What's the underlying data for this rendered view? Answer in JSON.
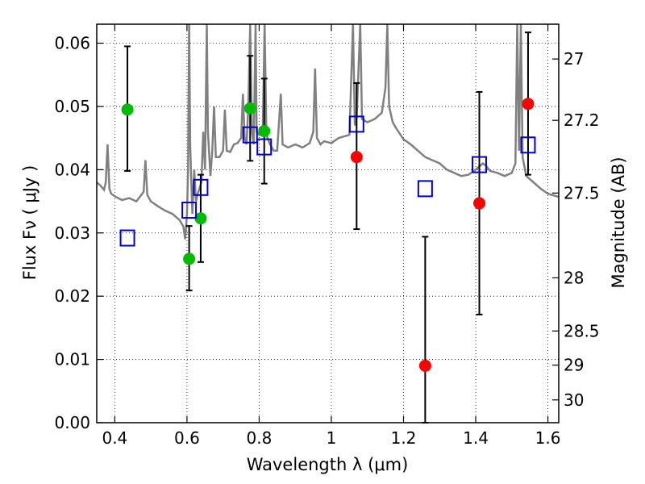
{
  "chart_data": {
    "type": "scatter",
    "xlabel": "Wavelength  λ (μm)",
    "ylabel": "Flux  Fν  ( μJy )",
    "y2label": "Magnitude (AB)",
    "xlim": [
      0.35,
      1.63
    ],
    "ylim": [
      0.0,
      0.063
    ],
    "x_ticks": [
      0.4,
      0.6,
      0.8,
      1.0,
      1.2,
      1.4,
      1.6
    ],
    "x_tick_labels": [
      "0.4",
      "0.6",
      "0.8",
      "1",
      "1.2",
      "1.4",
      "1.6"
    ],
    "y_ticks": [
      0.0,
      0.01,
      0.02,
      0.03,
      0.04,
      0.05,
      0.06
    ],
    "y_tick_labels": [
      "0.00",
      "0.01",
      "0.02",
      "0.03",
      "0.04",
      "0.05",
      "0.06"
    ],
    "y2_ticks": [
      {
        "label": "27",
        "flux": 0.0575
      },
      {
        "label": "27.2",
        "flux": 0.0478
      },
      {
        "label": "27.5",
        "flux": 0.0363
      },
      {
        "label": "28",
        "flux": 0.0229
      },
      {
        "label": "28.5",
        "flux": 0.0145
      },
      {
        "label": "29",
        "flux": 0.0091
      },
      {
        "label": "30",
        "flux": 0.0036
      }
    ],
    "grid": true,
    "colors": {
      "green": "#00bb00",
      "red": "#ff0000",
      "blue": "#0000cc",
      "spectrum": "#808080",
      "errorbar": "#000000"
    },
    "series": [
      {
        "marker": "circle",
        "color": "#00bb00",
        "points": [
          {
            "x": 0.435,
            "y": 0.0495,
            "yerr_low": 0.0398,
            "yerr_high": 0.0595
          },
          {
            "x": 0.606,
            "y": 0.0259,
            "yerr_low": 0.0209,
            "yerr_high": 0.0311
          },
          {
            "x": 0.638,
            "y": 0.0323,
            "yerr_low": 0.0254,
            "yerr_high": 0.0392
          },
          {
            "x": 0.775,
            "y": 0.0497,
            "yerr_low": 0.0414,
            "yerr_high": 0.058
          },
          {
            "x": 0.814,
            "y": 0.0461,
            "yerr_low": 0.0378,
            "yerr_high": 0.0544
          }
        ]
      },
      {
        "marker": "circle",
        "color": "#ff0000",
        "points": [
          {
            "x": 1.07,
            "y": 0.042,
            "yerr_low": 0.0306,
            "yerr_high": 0.0537
          },
          {
            "x": 1.26,
            "y": 0.009,
            "yerr_low": 0.0,
            "yerr_high": 0.0294
          },
          {
            "x": 1.41,
            "y": 0.0347,
            "yerr_low": 0.0171,
            "yerr_high": 0.0523
          },
          {
            "x": 1.545,
            "y": 0.0504,
            "yerr_low": 0.0392,
            "yerr_high": 0.0617
          }
        ]
      },
      {
        "marker": "square",
        "color": "#0000cc",
        "points": [
          {
            "x": 0.435,
            "y": 0.0292
          },
          {
            "x": 0.606,
            "y": 0.0336
          },
          {
            "x": 0.638,
            "y": 0.0372
          },
          {
            "x": 0.775,
            "y": 0.0455
          },
          {
            "x": 0.814,
            "y": 0.0436
          },
          {
            "x": 1.07,
            "y": 0.0472
          },
          {
            "x": 1.26,
            "y": 0.037
          },
          {
            "x": 1.41,
            "y": 0.0408
          },
          {
            "x": 1.545,
            "y": 0.0439
          }
        ]
      }
    ],
    "spectrum": {
      "color": "#808080",
      "points": [
        [
          0.35,
          0.038
        ],
        [
          0.36,
          0.0375
        ],
        [
          0.37,
          0.0368
        ],
        [
          0.375,
          0.038
        ],
        [
          0.38,
          0.044
        ],
        [
          0.385,
          0.037
        ],
        [
          0.39,
          0.0362
        ],
        [
          0.4,
          0.0358
        ],
        [
          0.42,
          0.0352
        ],
        [
          0.44,
          0.0355
        ],
        [
          0.46,
          0.035
        ],
        [
          0.48,
          0.0365
        ],
        [
          0.485,
          0.0415
        ],
        [
          0.49,
          0.036
        ],
        [
          0.5,
          0.035
        ],
        [
          0.52,
          0.0342
        ],
        [
          0.54,
          0.0335
        ],
        [
          0.56,
          0.033
        ],
        [
          0.58,
          0.032
        ],
        [
          0.59,
          0.031
        ],
        [
          0.595,
          0.029
        ],
        [
          0.6,
          0.033
        ],
        [
          0.603,
          0.04
        ],
        [
          0.606,
          0.063
        ],
        [
          0.609,
          0.044
        ],
        [
          0.612,
          0.038
        ],
        [
          0.615,
          0.033
        ],
        [
          0.62,
          0.04
        ],
        [
          0.625,
          0.035
        ],
        [
          0.63,
          0.0362
        ],
        [
          0.64,
          0.038
        ],
        [
          0.645,
          0.046
        ],
        [
          0.65,
          0.04
        ],
        [
          0.655,
          0.063
        ],
        [
          0.658,
          0.046
        ],
        [
          0.665,
          0.039
        ],
        [
          0.67,
          0.043
        ],
        [
          0.675,
          0.05
        ],
        [
          0.68,
          0.042
        ],
        [
          0.69,
          0.042
        ],
        [
          0.7,
          0.043
        ],
        [
          0.705,
          0.0495
        ],
        [
          0.71,
          0.043
        ],
        [
          0.72,
          0.0428
        ],
        [
          0.73,
          0.044
        ],
        [
          0.74,
          0.0442
        ],
        [
          0.75,
          0.045
        ],
        [
          0.755,
          0.052
        ],
        [
          0.76,
          0.045
        ],
        [
          0.765,
          0.044
        ],
        [
          0.77,
          0.05
        ],
        [
          0.775,
          0.063
        ],
        [
          0.78,
          0.046
        ],
        [
          0.785,
          0.044
        ],
        [
          0.79,
          0.063
        ],
        [
          0.793,
          0.046
        ],
        [
          0.8,
          0.0455
        ],
        [
          0.81,
          0.046
        ],
        [
          0.815,
          0.063
        ],
        [
          0.82,
          0.0455
        ],
        [
          0.83,
          0.044
        ],
        [
          0.84,
          0.043
        ],
        [
          0.85,
          0.043
        ],
        [
          0.86,
          0.052
        ],
        [
          0.865,
          0.044
        ],
        [
          0.88,
          0.0435
        ],
        [
          0.9,
          0.044
        ],
        [
          0.92,
          0.0435
        ],
        [
          0.94,
          0.0442
        ],
        [
          0.95,
          0.046
        ],
        [
          0.955,
          0.056
        ],
        [
          0.96,
          0.045
        ],
        [
          0.97,
          0.044
        ],
        [
          0.98,
          0.0445
        ],
        [
          1.0,
          0.0442
        ],
        [
          1.02,
          0.045
        ],
        [
          1.05,
          0.0455
        ],
        [
          1.06,
          0.063
        ],
        [
          1.065,
          0.047
        ],
        [
          1.07,
          0.048
        ],
        [
          1.08,
          0.063
        ],
        [
          1.085,
          0.048
        ],
        [
          1.1,
          0.0475
        ],
        [
          1.12,
          0.048
        ],
        [
          1.14,
          0.049
        ],
        [
          1.15,
          0.053
        ],
        [
          1.155,
          0.063
        ],
        [
          1.16,
          0.05
        ],
        [
          1.17,
          0.0475
        ],
        [
          1.18,
          0.0465
        ],
        [
          1.2,
          0.0448
        ],
        [
          1.22,
          0.044
        ],
        [
          1.24,
          0.043
        ],
        [
          1.26,
          0.042
        ],
        [
          1.28,
          0.0415
        ],
        [
          1.3,
          0.041
        ],
        [
          1.32,
          0.04
        ],
        [
          1.34,
          0.0395
        ],
        [
          1.36,
          0.039
        ],
        [
          1.38,
          0.0392
        ],
        [
          1.4,
          0.04
        ],
        [
          1.42,
          0.041
        ],
        [
          1.43,
          0.0405
        ],
        [
          1.44,
          0.0398
        ],
        [
          1.46,
          0.0395
        ],
        [
          1.48,
          0.039
        ],
        [
          1.5,
          0.0395
        ],
        [
          1.51,
          0.041
        ],
        [
          1.515,
          0.063
        ],
        [
          1.52,
          0.043
        ],
        [
          1.525,
          0.063
        ],
        [
          1.53,
          0.042
        ],
        [
          1.54,
          0.039
        ],
        [
          1.56,
          0.038
        ],
        [
          1.58,
          0.037
        ],
        [
          1.6,
          0.0362
        ],
        [
          1.63,
          0.0357
        ]
      ]
    }
  }
}
